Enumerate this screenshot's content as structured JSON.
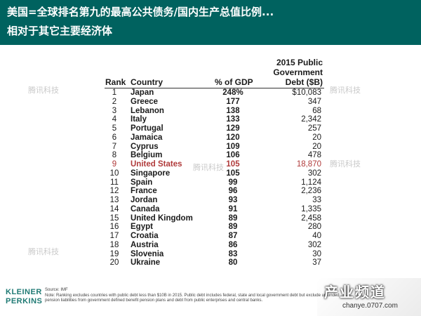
{
  "header": {
    "title_line1": "美国=全球排名第九的最高公共债务/国内生产总值比例...",
    "title_line2": "相对于其它主要经济体"
  },
  "table": {
    "debt_header_lines": [
      "2015 Public",
      "Government",
      "Debt ($B)"
    ],
    "columns": {
      "rank": "Rank",
      "country": "Country",
      "gdp": "% of GDP",
      "debt": "Debt ($B)"
    },
    "rows": [
      {
        "rank": "1",
        "country": "Japan",
        "gdp": "248%",
        "debt": "$10,083"
      },
      {
        "rank": "2",
        "country": "Greece",
        "gdp": "177",
        "debt": "347"
      },
      {
        "rank": "3",
        "country": "Lebanon",
        "gdp": "138",
        "debt": "68"
      },
      {
        "rank": "4",
        "country": "Italy",
        "gdp": "133",
        "debt": "2,342"
      },
      {
        "rank": "5",
        "country": "Portugal",
        "gdp": "129",
        "debt": "257"
      },
      {
        "rank": "6",
        "country": "Jamaica",
        "gdp": "120",
        "debt": "20"
      },
      {
        "rank": "7",
        "country": "Cyprus",
        "gdp": "109",
        "debt": "20"
      },
      {
        "rank": "8",
        "country": "Belgium",
        "gdp": "106",
        "debt": "478"
      },
      {
        "rank": "9",
        "country": "United States",
        "gdp": "105",
        "debt": "18,870"
      },
      {
        "rank": "10",
        "country": "Singapore",
        "gdp": "105",
        "debt": "302"
      },
      {
        "rank": "11",
        "country": "Spain",
        "gdp": "99",
        "debt": "1,124"
      },
      {
        "rank": "12",
        "country": "France",
        "gdp": "96",
        "debt": "2,236"
      },
      {
        "rank": "13",
        "country": "Jordan",
        "gdp": "93",
        "debt": "33"
      },
      {
        "rank": "14",
        "country": "Canada",
        "gdp": "91",
        "debt": "1,335"
      },
      {
        "rank": "15",
        "country": "United Kingdom",
        "gdp": "89",
        "debt": "2,458"
      },
      {
        "rank": "16",
        "country": "Egypt",
        "gdp": "89",
        "debt": "280"
      },
      {
        "rank": "17",
        "country": "Croatia",
        "gdp": "87",
        "debt": "40"
      },
      {
        "rank": "18",
        "country": "Austria",
        "gdp": "86",
        "debt": "302"
      },
      {
        "rank": "19",
        "country": "Slovenia",
        "gdp": "83",
        "debt": "30"
      },
      {
        "rank": "20",
        "country": "Ukraine",
        "gdp": "80",
        "debt": "37"
      }
    ],
    "highlight_rank": "9"
  },
  "footer": {
    "logo_line1": "KLEINER",
    "logo_line2": "PERKINS",
    "source": "Source: IMF",
    "note": "Note: Ranking excludes countries with public debt less than $10B in 2015. Public debt includes federal, state and local government debt but exclude unfunded pension liabilities from government defined benefit pension plans and debt from public enterprises and central banks."
  },
  "watermarks": {
    "text": "腾讯科技",
    "corner_text": "产业频道",
    "corner_url": "chanye.0707.com"
  },
  "colors": {
    "banner": "#00625f",
    "highlight": "#b03a3a",
    "logo": "#1f7a74"
  }
}
